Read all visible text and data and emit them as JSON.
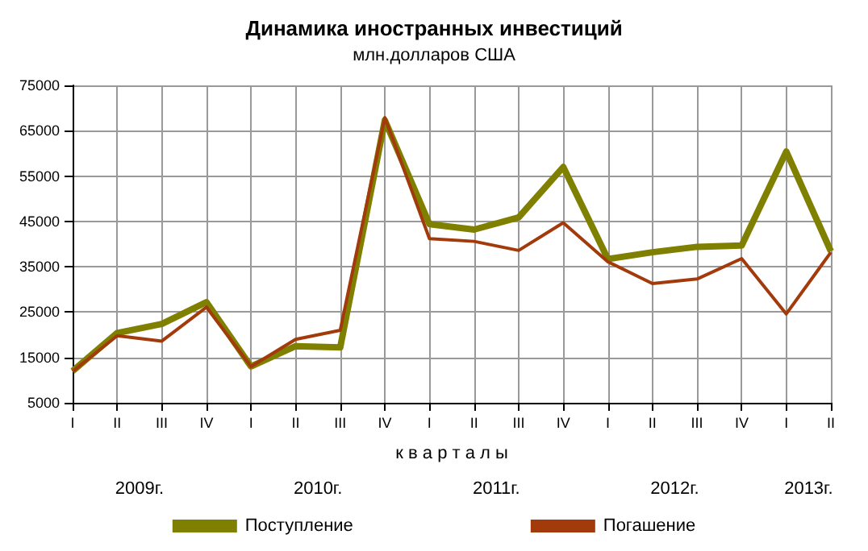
{
  "chart_data": {
    "type": "line",
    "title": "Динамика иностранных инвестиций",
    "subtitle": "млн.долларов США",
    "xlabel": "к в а р т а л ы",
    "categories": [
      "I",
      "II",
      "III",
      "IV",
      "I",
      "II",
      "III",
      "IV",
      "I",
      "II",
      "III",
      "IV",
      "I",
      "II",
      "III",
      "IV",
      "I",
      "II"
    ],
    "series": [
      {
        "name": "Поступление",
        "color": "#808000",
        "values": [
          12000,
          20400,
          22400,
          27200,
          13000,
          17500,
          17200,
          67300,
          44400,
          43200,
          45900,
          57000,
          36700,
          38200,
          39400,
          39700,
          60400,
          38400
        ]
      },
      {
        "name": "Погашение",
        "color": "#a33a0c",
        "values": [
          11900,
          19800,
          18600,
          26100,
          13000,
          19000,
          21000,
          67900,
          41200,
          40600,
          38600,
          44700,
          36100,
          31300,
          32300,
          36800,
          24600,
          38200
        ]
      }
    ],
    "annotations": [
      "2009г.",
      "2010г.",
      "2011г.",
      "2012г.",
      "2013г."
    ],
    "ylim": [
      5000,
      75000
    ],
    "yticks": [
      5000,
      15000,
      25000,
      35000,
      45000,
      55000,
      65000,
      75000
    ],
    "grid": true,
    "legend": "bottom",
    "marker": "none",
    "line_style": "solid"
  }
}
